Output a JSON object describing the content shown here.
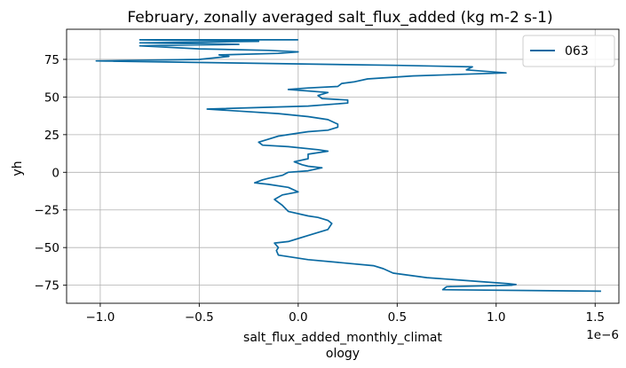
{
  "chart_data": {
    "type": "line",
    "title": "February, zonally averaged salt_flux_added (kg m-2 s-1)",
    "xlabel_lines": [
      "salt_flux_added_monthly_climat",
      "ology"
    ],
    "ylabel": "yh",
    "x_scale_note": "1e−6",
    "xlim": [
      -1.17,
      1.62
    ],
    "ylim": [
      -87,
      95
    ],
    "x_ticks": [
      -1.0,
      -0.5,
      0.0,
      0.5,
      1.0,
      1.5
    ],
    "x_tick_labels": [
      "−1.0",
      "−0.5",
      "0.0",
      "0.5",
      "1.0",
      "1.5"
    ],
    "y_ticks": [
      -75,
      -50,
      -25,
      0,
      25,
      50,
      75
    ],
    "y_tick_labels": [
      "−75",
      "−50",
      "−25",
      "0",
      "25",
      "50",
      "75"
    ],
    "grid": true,
    "legend_position": "top-right",
    "series": [
      {
        "name": "063",
        "color": "#0a6aa2",
        "x": [
          1.53,
          0.73,
          0.75,
          1.08,
          1.1,
          1.06,
          0.65,
          0.48,
          0.43,
          0.38,
          0.05,
          -0.1,
          -0.11,
          -0.1,
          -0.12,
          -0.05,
          0.0,
          0.05,
          0.1,
          0.15,
          0.17,
          0.15,
          0.1,
          0.05,
          -0.05,
          -0.08,
          -0.12,
          -0.08,
          0.0,
          -0.05,
          -0.15,
          -0.22,
          -0.18,
          -0.15,
          -0.08,
          -0.05,
          0.05,
          0.12,
          0.05,
          0.02,
          -0.02,
          0.05,
          0.05,
          0.15,
          0.1,
          -0.05,
          -0.18,
          -0.2,
          -0.15,
          -0.1,
          0.0,
          0.05,
          0.15,
          0.2,
          0.2,
          0.15,
          0.05,
          -0.1,
          -0.46,
          0.05,
          0.25,
          0.25,
          0.12,
          0.1,
          0.15,
          -0.05,
          0.05,
          0.2,
          0.22,
          0.28,
          0.35,
          0.58,
          1.05,
          0.85,
          0.88,
          0.5,
          -1.02,
          -0.5,
          -0.35,
          -0.4,
          -0.1,
          0.0,
          -0.15,
          -0.5,
          -0.8,
          -0.3,
          -0.8,
          -0.2,
          -0.8,
          0.0
        ],
        "y": [
          -79,
          -78,
          -76,
          -75,
          -74.5,
          -74,
          -70,
          -67,
          -64,
          -62,
          -58,
          -55,
          -52,
          -50,
          -47,
          -46,
          -44,
          -42,
          -40,
          -38,
          -34,
          -32,
          -30,
          -29,
          -26,
          -22,
          -18,
          -15,
          -13,
          -10,
          -8,
          -7,
          -5,
          -4,
          -2,
          0,
          1,
          3,
          4,
          5,
          7,
          9,
          12,
          14,
          15,
          17,
          18,
          20,
          22,
          24,
          26,
          27,
          28,
          30,
          32,
          35,
          37,
          39,
          42,
          44,
          46,
          48,
          49,
          51,
          53,
          55,
          56,
          57,
          59,
          60,
          62,
          64,
          66,
          68,
          70,
          71,
          74,
          75,
          77,
          78,
          79,
          80,
          81,
          82,
          84,
          85,
          86,
          87,
          88,
          88
        ]
      }
    ]
  }
}
